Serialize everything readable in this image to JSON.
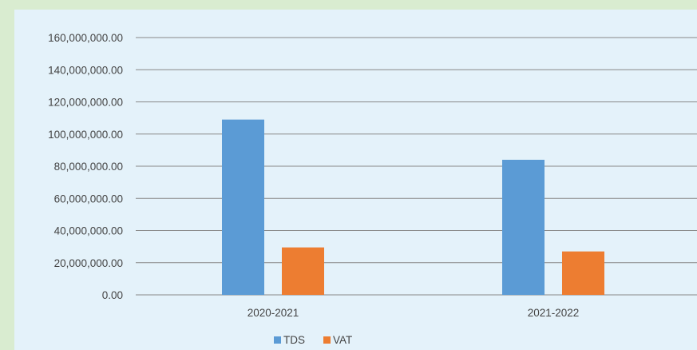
{
  "chart_data": {
    "type": "bar",
    "categories": [
      "2020-2021",
      "2021-2022"
    ],
    "series": [
      {
        "name": "TDS",
        "color": "#5b9bd5",
        "values": [
          109000000,
          84000000
        ]
      },
      {
        "name": "VAT",
        "color": "#ed7d31",
        "values": [
          29500000,
          27000000
        ]
      }
    ],
    "ylim": [
      0,
      160000000
    ],
    "y_ticks": [
      "0.00",
      "20,000,000.00",
      "40,000,000.00",
      "60,000,000.00",
      "80,000,000.00",
      "100,000,000.00",
      "120,000,000.00",
      "140,000,000.00",
      "160,000,000.00"
    ],
    "grid": true,
    "legend_position": "bottom",
    "title": "",
    "xlabel": "",
    "ylabel": ""
  },
  "colors": {
    "page_background": "#d9ecd0",
    "plot_background": "#e4f2fa",
    "gridline": "#888888"
  }
}
